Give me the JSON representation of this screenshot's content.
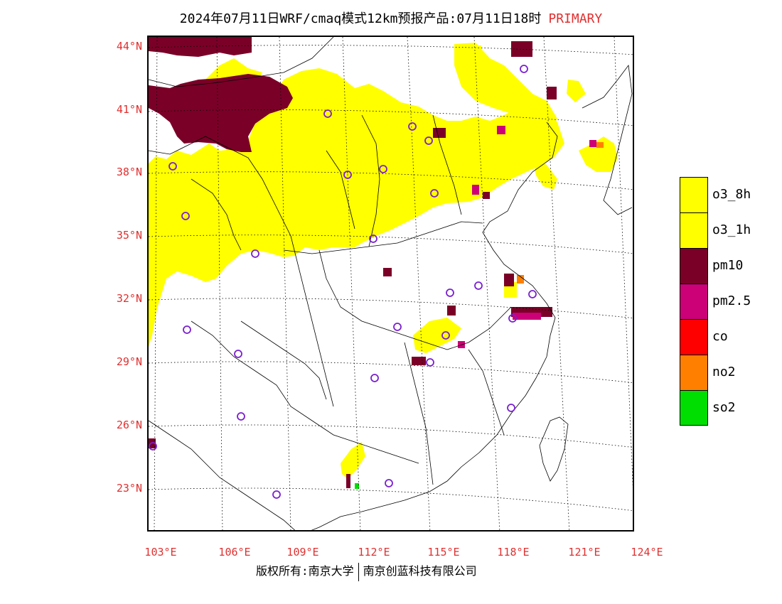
{
  "title": {
    "main": "2024年07月11日WRF/cmaq模式12km预报产品:07月11日18时",
    "tag": "PRIMARY"
  },
  "axes": {
    "lat_labels": [
      "44°N",
      "41°N",
      "38°N",
      "35°N",
      "32°N",
      "29°N",
      "26°N",
      "23°N"
    ],
    "lon_labels": [
      "103°E",
      "106°E",
      "109°E",
      "112°E",
      "115°E",
      "118°E",
      "121°E",
      "124°E"
    ]
  },
  "legend": [
    {
      "label": "o3_8h",
      "color": "#ffff00"
    },
    {
      "label": "o3_1h",
      "color": "#ffff00"
    },
    {
      "label": "pm10",
      "color": "#7a0028"
    },
    {
      "label": "pm2.5",
      "color": "#cc0077"
    },
    {
      "label": "co",
      "color": "#ff0000"
    },
    {
      "label": "no2",
      "color": "#ff8000"
    },
    {
      "label": "so2",
      "color": "#00dd00"
    }
  ],
  "footer": {
    "left": "版权所有:南京大学",
    "right": "南京创蓝科技有限公司"
  },
  "colors": {
    "o3": "#ffff00",
    "pm10": "#7a0028",
    "pm25": "#cc0077",
    "no2": "#ff8000",
    "so2": "#00dd00",
    "station": "#7a20d0",
    "accent": "#e03030"
  }
}
